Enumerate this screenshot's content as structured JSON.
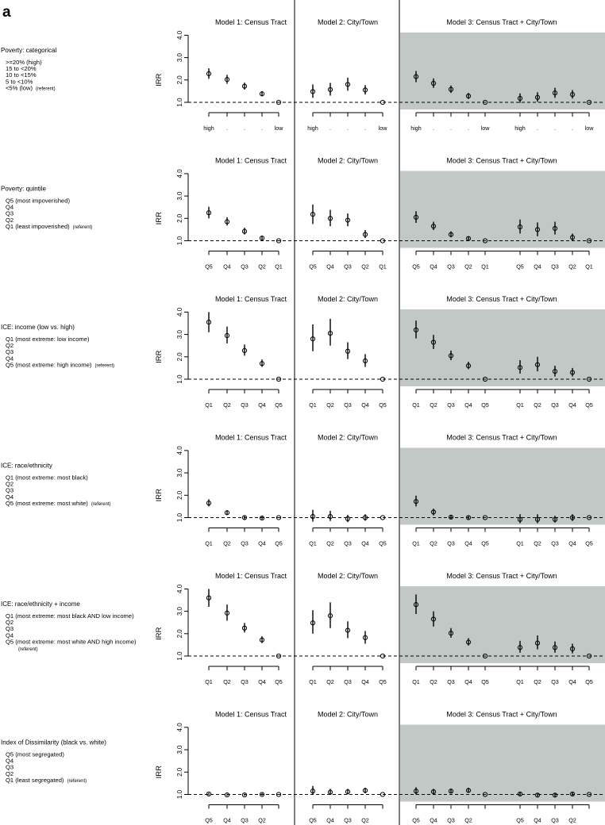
{
  "panel_letter": "a",
  "ref_label": "(referent)",
  "colors": {
    "shade": "#c2c8c6",
    "ink": "#000000"
  },
  "chart_data": {
    "type": "scatter",
    "description_kind": "point estimates with confidence intervals",
    "y_label": "IRR",
    "ylim": [
      1.0,
      4.0
    ],
    "y_ticks": [
      "1.0",
      "2.0",
      "3.0",
      "4.0"
    ],
    "reference_line": 1.0,
    "model_titles": [
      "Model 1: Census Tract",
      "Model 2: City/Town",
      "Model 3: Census Tract + City/Town"
    ],
    "rows": [
      {
        "title": "Poverty: categorical",
        "items": [
          "<5% (low)",
          "5 to <10%",
          "10 to <15%",
          "15 to <20%",
          ">=20% (high)"
        ],
        "ref_index": 0,
        "ticks": {
          "m1": [
            "high",
            ".",
            ".",
            ".",
            "low"
          ],
          "m2": [
            "high",
            ".",
            ".",
            ".",
            "low"
          ],
          "m3a": [
            "high",
            ".",
            ".",
            ".",
            "low"
          ],
          "m3b": [
            "high",
            ".",
            ".",
            ".",
            "low"
          ]
        },
        "m1": {
          "est": [
            2.28,
            2.02,
            1.72,
            1.38,
            1.0
          ],
          "lo": [
            2.05,
            1.83,
            1.57,
            1.27,
            1.0
          ],
          "hi": [
            2.52,
            2.23,
            1.88,
            1.5,
            1.0
          ]
        },
        "m2": {
          "est": [
            1.48,
            1.57,
            1.8,
            1.55,
            1.0
          ],
          "lo": [
            1.2,
            1.3,
            1.52,
            1.35,
            1.0
          ],
          "hi": [
            1.8,
            1.87,
            2.1,
            1.77,
            1.0
          ]
        },
        "m3a": {
          "est": [
            2.15,
            1.85,
            1.58,
            1.28,
            1.0
          ],
          "lo": [
            1.9,
            1.65,
            1.42,
            1.15,
            1.0
          ],
          "hi": [
            2.4,
            2.07,
            1.75,
            1.42,
            1.0
          ]
        },
        "m3b": {
          "est": [
            1.18,
            1.22,
            1.42,
            1.35,
            1.0
          ],
          "lo": [
            0.98,
            1.02,
            1.2,
            1.17,
            1.0
          ],
          "hi": [
            1.4,
            1.45,
            1.65,
            1.55,
            1.0
          ]
        }
      },
      {
        "title": "Poverty: quintile",
        "items": [
          "Q1 (least impoverished)",
          "Q2",
          "Q3",
          "Q4",
          "Q5 (most impoverished)"
        ],
        "ref_index": 0,
        "ticks": {
          "m1": [
            "Q5",
            "Q4",
            "Q3",
            "Q2",
            "Q1"
          ],
          "m2": [
            "Q5",
            "Q4",
            "Q3",
            "Q2",
            "Q1"
          ],
          "m3a": [
            "Q5",
            "Q4",
            "Q3",
            "Q2",
            "Q1"
          ],
          "m3b": [
            "Q5",
            "Q4",
            "Q3",
            "Q2",
            "Q1"
          ]
        },
        "m1": {
          "est": [
            2.25,
            1.85,
            1.42,
            1.12,
            1.0
          ],
          "lo": [
            2.0,
            1.68,
            1.28,
            1.03,
            1.0
          ],
          "hi": [
            2.52,
            2.05,
            1.58,
            1.22,
            1.0
          ]
        },
        "m2": {
          "est": [
            2.18,
            2.0,
            1.92,
            1.28,
            1.0
          ],
          "lo": [
            1.75,
            1.65,
            1.65,
            1.12,
            1.0
          ],
          "hi": [
            2.62,
            2.38,
            2.22,
            1.48,
            1.0
          ]
        },
        "m3a": {
          "est": [
            2.05,
            1.65,
            1.28,
            1.1,
            1.0
          ],
          "lo": [
            1.8,
            1.48,
            1.15,
            1.02,
            1.0
          ],
          "hi": [
            2.32,
            1.85,
            1.42,
            1.2,
            1.0
          ]
        },
        "m3b": {
          "est": [
            1.62,
            1.5,
            1.55,
            1.15,
            1.0
          ],
          "lo": [
            1.32,
            1.2,
            1.28,
            1.0,
            1.0
          ],
          "hi": [
            1.95,
            1.82,
            1.85,
            1.32,
            1.0
          ]
        }
      },
      {
        "title": "ICE: income (low vs. high)",
        "items": [
          "Q5 (most extreme: high income)",
          "Q4",
          "Q3",
          "Q2",
          "Q1 (most extreme: low income)"
        ],
        "ref_index": 0,
        "ticks": {
          "m1": [
            "Q1",
            "Q2",
            "Q3",
            "Q4",
            "Q5"
          ],
          "m2": [
            "Q1",
            "Q2",
            "Q3",
            "Q4",
            "Q5"
          ],
          "m3a": [
            "Q1",
            "Q2",
            "Q3",
            "Q4",
            "Q5"
          ],
          "m3b": [
            "Q1",
            "Q2",
            "Q3",
            "Q4",
            "Q5"
          ]
        },
        "m1": {
          "est": [
            3.55,
            2.95,
            2.28,
            1.7,
            1.0
          ],
          "lo": [
            3.1,
            2.6,
            2.05,
            1.55,
            1.0
          ],
          "hi": [
            4.0,
            3.35,
            2.55,
            1.88,
            1.0
          ]
        },
        "m2": {
          "est": [
            2.8,
            3.05,
            2.25,
            1.82,
            1.0
          ],
          "lo": [
            2.25,
            2.5,
            1.9,
            1.55,
            1.0
          ],
          "hi": [
            3.45,
            3.7,
            2.65,
            2.12,
            1.0
          ]
        },
        "m3a": {
          "est": [
            3.2,
            2.65,
            2.05,
            1.6,
            1.0
          ],
          "lo": [
            2.82,
            2.35,
            1.85,
            1.45,
            1.0
          ],
          "hi": [
            3.62,
            2.98,
            2.28,
            1.78,
            1.0
          ]
        },
        "m3b": {
          "est": [
            1.52,
            1.65,
            1.35,
            1.3,
            1.0
          ],
          "lo": [
            1.25,
            1.35,
            1.12,
            1.12,
            1.0
          ],
          "hi": [
            1.85,
            2.0,
            1.6,
            1.5,
            1.0
          ]
        }
      },
      {
        "title": "ICE: race/ethnicity",
        "items": [
          "Q5 (most extreme: most white)",
          "Q4",
          "Q3",
          "Q2",
          "Q1 (most extreme: most black)"
        ],
        "ref_index": 0,
        "ticks": {
          "m1": [
            "Q1",
            "Q2",
            "Q3",
            "Q4",
            "Q5"
          ],
          "m2": [
            "Q1",
            "Q2",
            "Q3",
            "Q4",
            "Q5"
          ],
          "m3a": [
            "Q1",
            "Q2",
            "Q3",
            "Q4",
            "Q5"
          ],
          "m3b": [
            "Q1",
            "Q2",
            "Q3",
            "Q4",
            "Q5"
          ]
        },
        "m1": {
          "est": [
            1.65,
            1.22,
            1.0,
            0.98,
            1.0
          ],
          "lo": [
            1.5,
            1.12,
            0.93,
            0.92,
            1.0
          ],
          "hi": [
            1.82,
            1.33,
            1.07,
            1.05,
            1.0
          ]
        },
        "m2": {
          "est": [
            1.05,
            1.05,
            0.95,
            1.0,
            1.0
          ],
          "lo": [
            0.82,
            0.85,
            0.8,
            0.86,
            1.0
          ],
          "hi": [
            1.35,
            1.3,
            1.12,
            1.15,
            1.0
          ]
        },
        "m3a": {
          "est": [
            1.72,
            1.25,
            1.02,
            1.0,
            1.0
          ],
          "lo": [
            1.5,
            1.1,
            0.95,
            0.93,
            1.0
          ],
          "hi": [
            1.98,
            1.4,
            1.1,
            1.07,
            1.0
          ]
        },
        "m3b": {
          "est": [
            0.92,
            0.92,
            0.92,
            1.0,
            1.0
          ],
          "lo": [
            0.75,
            0.75,
            0.78,
            0.85,
            1.0
          ],
          "hi": [
            1.15,
            1.15,
            1.08,
            1.15,
            1.0
          ]
        }
      },
      {
        "title": "ICE: race/ethnicity + income",
        "items": [
          "Q5 (most extreme: most white AND high income)",
          "Q4",
          "Q3",
          "Q2",
          "Q1 (most extreme: most black AND low income)"
        ],
        "ref_index": 0,
        "ref_on_next_line": true,
        "ticks": {
          "m1": [
            "Q1",
            "Q2",
            "Q3",
            "Q4",
            "Q5"
          ],
          "m2": [
            "Q1",
            "Q2",
            "Q3",
            "Q4",
            "Q5"
          ],
          "m3a": [
            "Q1",
            "Q2",
            "Q3",
            "Q4",
            "Q5"
          ],
          "m3b": [
            "Q1",
            "Q2",
            "Q3",
            "Q4",
            "Q5"
          ]
        },
        "m1": {
          "est": [
            3.6,
            2.92,
            2.25,
            1.72,
            1.0
          ],
          "lo": [
            3.2,
            2.58,
            2.05,
            1.58,
            1.0
          ],
          "hi": [
            4.0,
            3.3,
            2.48,
            1.88,
            1.0
          ]
        },
        "m2": {
          "est": [
            2.48,
            2.8,
            2.15,
            1.82,
            1.0
          ],
          "lo": [
            2.0,
            2.25,
            1.8,
            1.55,
            1.0
          ],
          "hi": [
            3.05,
            3.4,
            2.55,
            2.12,
            1.0
          ]
        },
        "m3a": {
          "est": [
            3.3,
            2.65,
            2.02,
            1.62,
            1.0
          ],
          "lo": [
            2.88,
            2.32,
            1.82,
            1.47,
            1.0
          ],
          "hi": [
            3.75,
            3.0,
            2.25,
            1.8,
            1.0
          ]
        },
        "m3b": {
          "est": [
            1.38,
            1.58,
            1.38,
            1.32,
            1.0
          ],
          "lo": [
            1.15,
            1.3,
            1.15,
            1.12,
            1.0
          ],
          "hi": [
            1.68,
            1.92,
            1.65,
            1.55,
            1.0
          ]
        }
      },
      {
        "title": "Index of Dissimilarity (black vs. white)",
        "items": [
          "Q1 (least segregated)",
          "Q2",
          "Q3",
          "Q4",
          "Q5 (most segregated)"
        ],
        "ref_index": 0,
        "ticks": {
          "m1": [
            "Q5",
            "Q4",
            "Q3",
            "Q2",
            ""
          ],
          "m2": [
            "Q5",
            "Q4",
            "Q3",
            "Q2",
            ""
          ],
          "m3a": [
            "Q5",
            "Q4",
            "Q3",
            "Q2",
            ""
          ],
          "m3b": [
            "Q5",
            "Q4",
            "Q3",
            "Q2",
            ""
          ]
        },
        "m1": {
          "est": [
            1.02,
            0.98,
            0.98,
            1.0,
            1.0
          ],
          "lo": [
            0.97,
            0.94,
            0.94,
            0.95,
            1.0
          ],
          "hi": [
            1.07,
            1.03,
            1.03,
            1.06,
            1.0
          ]
        },
        "m2": {
          "est": [
            1.15,
            1.1,
            1.12,
            1.18,
            1.0
          ],
          "lo": [
            0.98,
            0.98,
            1.0,
            1.05,
            1.0
          ],
          "hi": [
            1.38,
            1.25,
            1.25,
            1.3,
            1.0
          ]
        },
        "m3a": {
          "est": [
            1.15,
            1.12,
            1.15,
            1.18,
            1.0
          ],
          "lo": [
            1.0,
            1.02,
            1.05,
            1.08,
            1.0
          ],
          "hi": [
            1.32,
            1.25,
            1.25,
            1.3,
            1.0
          ]
        },
        "m3b": {
          "est": [
            1.02,
            0.97,
            0.97,
            1.02,
            1.0
          ],
          "lo": [
            0.95,
            0.9,
            0.88,
            0.95,
            1.0
          ],
          "hi": [
            1.1,
            1.05,
            1.07,
            1.1,
            1.0
          ]
        }
      }
    ]
  }
}
